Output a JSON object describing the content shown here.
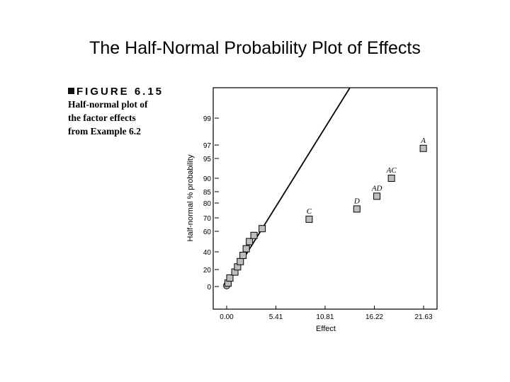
{
  "slide_title": "The Half-Normal Probability Plot of Effects",
  "caption": {
    "figure_label": "FIGURE 6.15",
    "lines": [
      "Half-normal plot of",
      "the factor effects",
      "from Example 6.2"
    ]
  },
  "chart_data": {
    "type": "scatter",
    "title": "",
    "xlabel": "Effect",
    "ylabel": "Half-normal % probability",
    "x_ticks": [
      {
        "value": 0.0,
        "label": "0.00"
      },
      {
        "value": 5.41,
        "label": "5.41"
      },
      {
        "value": 10.81,
        "label": "10.81"
      },
      {
        "value": 16.22,
        "label": "16.22"
      },
      {
        "value": 21.63,
        "label": "21.63"
      }
    ],
    "y_ticks": [
      0,
      20,
      40,
      60,
      70,
      80,
      85,
      90,
      95,
      97,
      99
    ],
    "points": [
      {
        "x": 0.0,
        "y": 1,
        "label": "",
        "marker": "circle"
      },
      {
        "x": 0.15,
        "y": 4,
        "label": "",
        "marker": "square"
      },
      {
        "x": 0.35,
        "y": 10,
        "label": "",
        "marker": "square"
      },
      {
        "x": 0.9,
        "y": 17,
        "label": "",
        "marker": "square"
      },
      {
        "x": 1.2,
        "y": 23,
        "label": "",
        "marker": "square"
      },
      {
        "x": 1.5,
        "y": 29,
        "label": "",
        "marker": "square"
      },
      {
        "x": 1.8,
        "y": 36,
        "label": "",
        "marker": "square"
      },
      {
        "x": 2.15,
        "y": 43,
        "label": "",
        "marker": "square"
      },
      {
        "x": 2.5,
        "y": 50,
        "label": "",
        "marker": "square"
      },
      {
        "x": 3.0,
        "y": 56,
        "label": "",
        "marker": "square"
      },
      {
        "x": 3.9,
        "y": 62,
        "label": "",
        "marker": "square"
      },
      {
        "x": 9.06,
        "y": 69,
        "label": "C",
        "marker": "square"
      },
      {
        "x": 14.3,
        "y": 76,
        "label": "D",
        "marker": "square"
      },
      {
        "x": 16.5,
        "y": 83,
        "label": "AD",
        "marker": "square"
      },
      {
        "x": 18.1,
        "y": 90,
        "label": "AC",
        "marker": "square"
      },
      {
        "x": 21.6,
        "y": 96.5,
        "label": "A",
        "marker": "square"
      }
    ],
    "fit_line": {
      "from": {
        "x": 0.0,
        "y": 1
      },
      "through": {
        "x": 3.9,
        "y": 62
      }
    },
    "grid": false
  }
}
